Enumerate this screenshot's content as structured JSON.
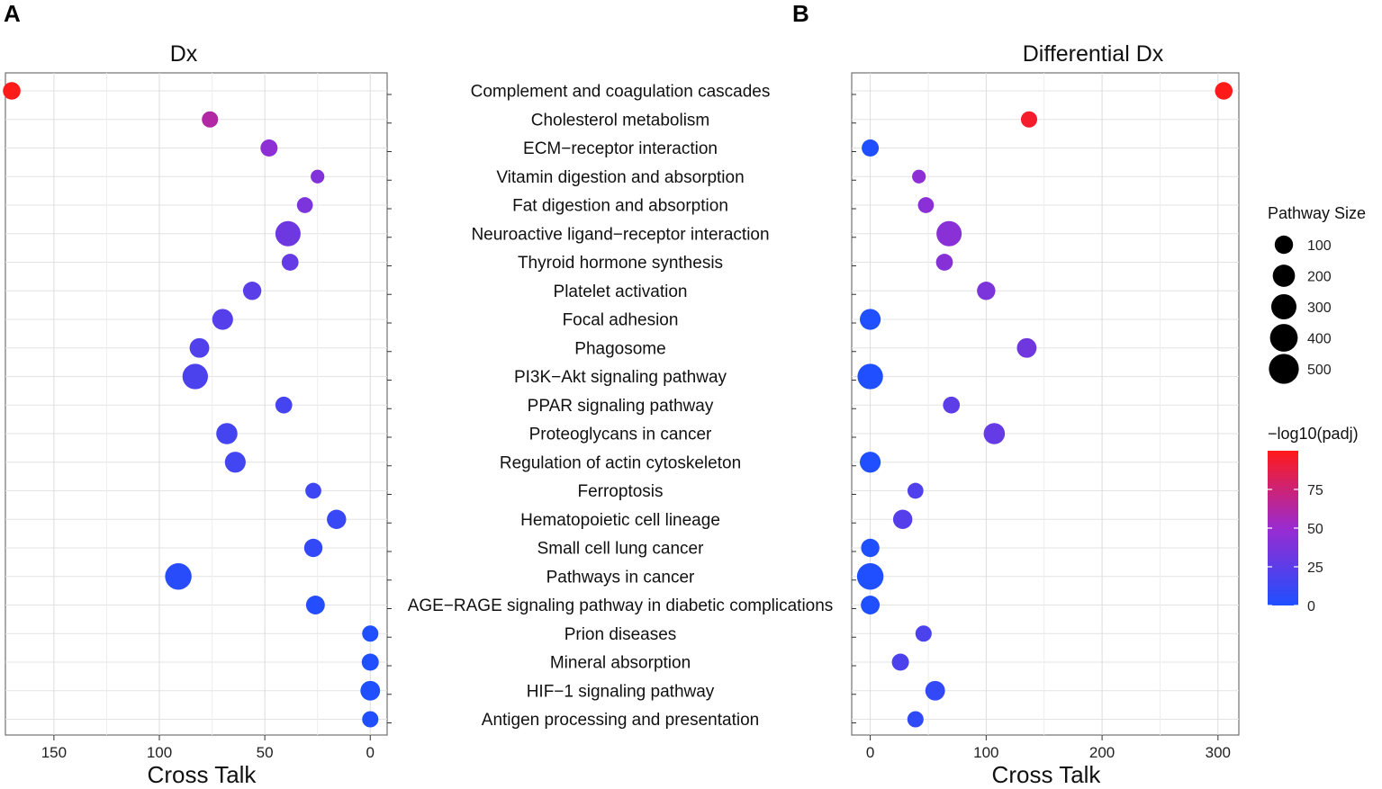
{
  "figure": {
    "label_a": "A",
    "label_b": "B"
  },
  "chart_data": [
    {
      "type": "scatter",
      "panel": "A",
      "title": "Dx",
      "xlabel": "Cross Talk",
      "ylabel": "",
      "xlim": [
        173,
        -8
      ],
      "x_reversed": true,
      "xticks": [
        150,
        100,
        50,
        0
      ],
      "categories": [
        "Complement and coagulation cascades",
        "Cholesterol metabolism",
        "ECM−receptor interaction",
        "Vitamin digestion and absorption",
        "Fat digestion and absorption",
        "Neuroactive ligand−receptor interaction",
        "Thyroid hormone synthesis",
        "Platelet activation",
        "Focal adhesion",
        "Phagosome",
        "PI3K−Akt signaling pathway",
        "PPAR signaling pathway",
        "Proteoglycans in cancer",
        "Regulation of actin cytoskeleton",
        "Ferroptosis",
        "Hematopoietic cell lineage",
        "Small cell lung cancer",
        "Pathways in cancer",
        "AGE−RAGE signaling pathway in diabetic complications",
        "Prion diseases",
        "Mineral absorption",
        "HIF−1 signaling pathway",
        "Antigen processing and presentation"
      ],
      "cross_talk": [
        170,
        76,
        48,
        25,
        31,
        39,
        38,
        56,
        70,
        81,
        83,
        41,
        68,
        64,
        27,
        16,
        27,
        91,
        26,
        0,
        0,
        0,
        0
      ],
      "pathway_size": [
        85,
        60,
        75,
        25,
        55,
        300,
        70,
        100,
        160,
        130,
        310,
        70,
        170,
        160,
        55,
        120,
        100,
        350,
        110,
        60,
        75,
        130,
        60
      ],
      "neg_log10_padj": [
        100,
        62,
        45,
        40,
        38,
        32,
        28,
        24,
        22,
        20,
        18,
        16,
        15,
        14,
        12,
        10,
        8,
        4,
        2,
        0,
        0,
        0,
        0
      ]
    },
    {
      "type": "scatter",
      "panel": "B",
      "title": "Differential Dx",
      "xlabel": "Cross Talk",
      "ylabel": "",
      "xlim": [
        -16,
        318
      ],
      "x_reversed": false,
      "xticks": [
        0,
        100,
        200,
        300
      ],
      "categories": [
        "Complement and coagulation cascades",
        "Cholesterol metabolism",
        "ECM−receptor interaction",
        "Vitamin digestion and absorption",
        "Fat digestion and absorption",
        "Neuroactive ligand−receptor interaction",
        "Thyroid hormone synthesis",
        "Platelet activation",
        "Focal adhesion",
        "Phagosome",
        "PI3K−Akt signaling pathway",
        "PPAR signaling pathway",
        "Proteoglycans in cancer",
        "Regulation of actin cytoskeleton",
        "Ferroptosis",
        "Hematopoietic cell lineage",
        "Small cell lung cancer",
        "Pathways in cancer",
        "AGE−RAGE signaling pathway in diabetic complications",
        "Prion diseases",
        "Mineral absorption",
        "HIF−1 signaling pathway",
        "Antigen processing and presentation"
      ],
      "cross_talk": [
        305,
        137,
        0,
        42,
        48,
        68,
        64,
        100,
        0,
        135,
        0,
        70,
        107,
        0,
        39,
        28,
        0,
        0,
        0,
        46,
        26,
        56,
        39
      ],
      "pathway_size": [
        85,
        60,
        75,
        25,
        55,
        300,
        70,
        100,
        160,
        130,
        310,
        70,
        170,
        160,
        55,
        120,
        100,
        350,
        110,
        60,
        75,
        130,
        60
      ],
      "neg_log10_padj": [
        100,
        95,
        0,
        45,
        44,
        43,
        42,
        38,
        0,
        33,
        0,
        25,
        28,
        0,
        20,
        22,
        0,
        0,
        0,
        18,
        18,
        8,
        7
      ]
    }
  ],
  "legend": {
    "size_title": "Pathway Size",
    "size_values": [
      100,
      200,
      300,
      400,
      500
    ],
    "color_title": "−log10(padj)",
    "color_ticks": [
      75,
      50,
      25,
      0
    ],
    "color_max": 100,
    "color_low": "#1f4fff",
    "color_mid": "#9a2bd0",
    "color_high": "#ff1a1a"
  }
}
